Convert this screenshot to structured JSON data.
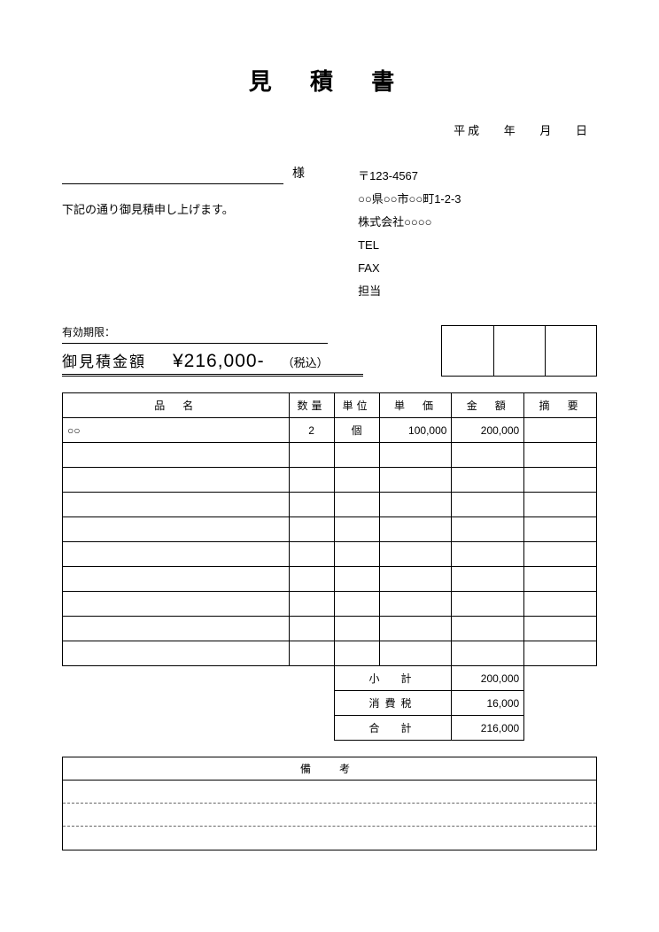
{
  "title": "見 積 書",
  "date": {
    "era": "平成",
    "yearLabel": "年",
    "monthLabel": "月",
    "dayLabel": "日"
  },
  "customer": {
    "honorific": "様"
  },
  "statement": "下記の通り御見積申し上げます。",
  "sender": {
    "postal": "〒123-4567",
    "address": "○○県○○市○○町1-2-3",
    "company": "株式会社○○○○",
    "telLabel": "TEL",
    "faxLabel": "FAX",
    "contactLabel": "担当"
  },
  "validLabel": "有効期限：",
  "total": {
    "label": "御見積金額",
    "amount": "¥216,000-",
    "suffix": "（税込）"
  },
  "stampCount": 3,
  "headers": {
    "name": "品　名",
    "qty": "数量",
    "unit": "単位",
    "price": "単　価",
    "amount": "金　額",
    "note": "摘　要"
  },
  "rows": [
    {
      "name": "○○",
      "qty": "2",
      "unit": "個",
      "price": "100,000",
      "amount": "200,000",
      "note": ""
    },
    {
      "name": "",
      "qty": "",
      "unit": "",
      "price": "",
      "amount": "",
      "note": ""
    },
    {
      "name": "",
      "qty": "",
      "unit": "",
      "price": "",
      "amount": "",
      "note": ""
    },
    {
      "name": "",
      "qty": "",
      "unit": "",
      "price": "",
      "amount": "",
      "note": ""
    },
    {
      "name": "",
      "qty": "",
      "unit": "",
      "price": "",
      "amount": "",
      "note": ""
    },
    {
      "name": "",
      "qty": "",
      "unit": "",
      "price": "",
      "amount": "",
      "note": ""
    },
    {
      "name": "",
      "qty": "",
      "unit": "",
      "price": "",
      "amount": "",
      "note": ""
    },
    {
      "name": "",
      "qty": "",
      "unit": "",
      "price": "",
      "amount": "",
      "note": ""
    },
    {
      "name": "",
      "qty": "",
      "unit": "",
      "price": "",
      "amount": "",
      "note": ""
    },
    {
      "name": "",
      "qty": "",
      "unit": "",
      "price": "",
      "amount": "",
      "note": ""
    }
  ],
  "summary": {
    "subtotalLabel": "小　計",
    "subtotal": "200,000",
    "taxLabel": "消費税",
    "tax": "16,000",
    "totalLabel": "合　計",
    "total": "216,000"
  },
  "notes": {
    "header": "備　考",
    "lineCount": 3
  },
  "colors": {
    "text": "#000000",
    "background": "#ffffff",
    "border": "#000000",
    "dash": "#666666"
  }
}
